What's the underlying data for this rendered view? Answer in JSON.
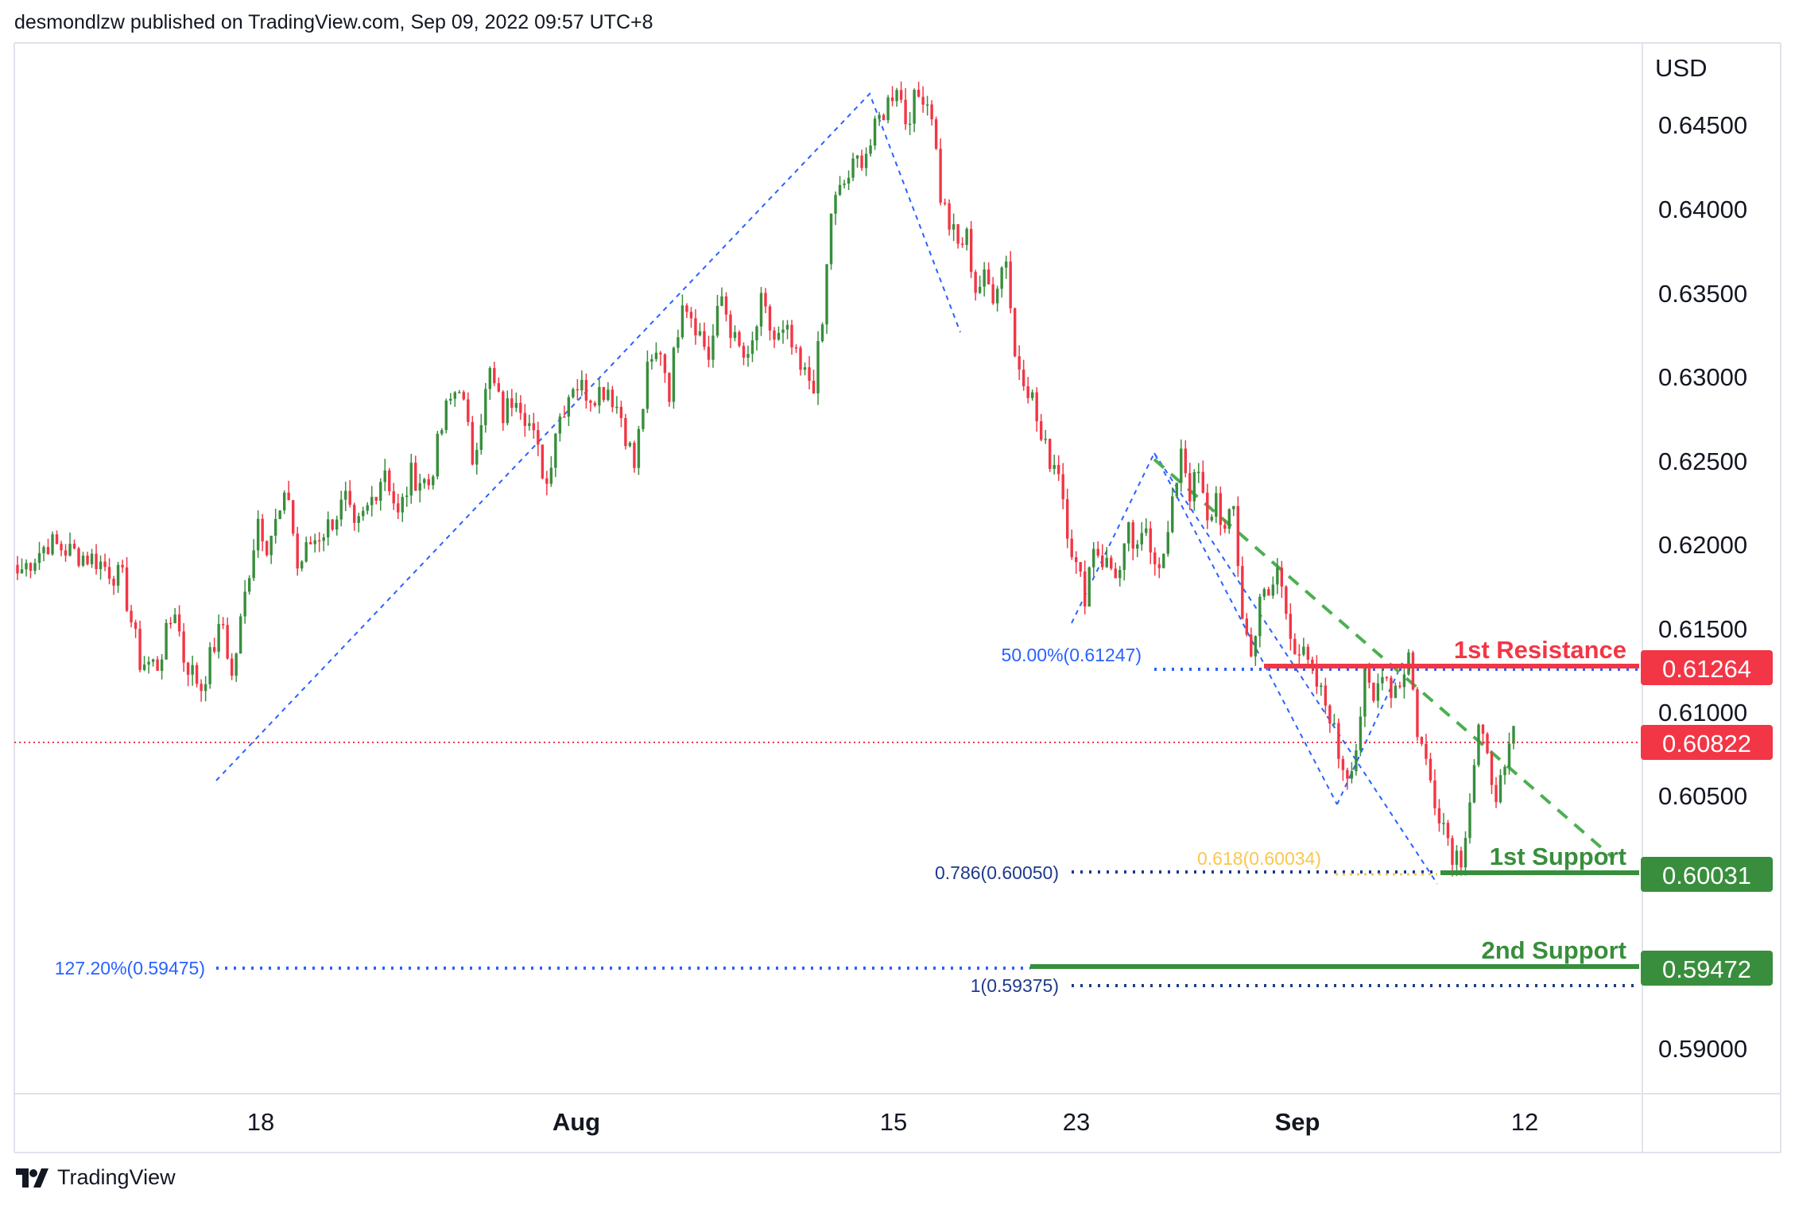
{
  "header": {
    "published_text": "desmondlzw published on TradingView.com, Sep 09, 2022 09:57 UTC+8"
  },
  "footer": {
    "brand": "TradingView"
  },
  "chart_data": {
    "type": "candlestick",
    "currency_label": "USD",
    "price_axis_ticks": [
      "0.64500",
      "0.64000",
      "0.63500",
      "0.63000",
      "0.62500",
      "0.62000",
      "0.61500",
      "0.61000",
      "0.60500",
      "0.59000"
    ],
    "ylim": [
      0.5865,
      0.6485
    ],
    "date_axis_labels": [
      {
        "label": "18",
        "bold": false
      },
      {
        "label": "Aug",
        "bold": true
      },
      {
        "label": "15",
        "bold": false
      },
      {
        "label": "23",
        "bold": false
      },
      {
        "label": "Sep",
        "bold": true
      },
      {
        "label": "12",
        "bold": false
      }
    ],
    "current_price": "0.60822",
    "levels": [
      {
        "name": "1st Resistance",
        "value": "0.61264",
        "color": "#f23645"
      },
      {
        "name": "1st Support",
        "value": "0.60031",
        "color": "#388e3c"
      },
      {
        "name": "2nd Support",
        "value": "0.59472",
        "color": "#388e3c"
      }
    ],
    "fib_labels": [
      {
        "text": "50.00%(0.61247)",
        "color": "#2962ff"
      },
      {
        "text": "0.786(0.60050)",
        "color": "#1e3a8a"
      },
      {
        "text": "0.618(0.60034)",
        "color": "#f9c74f"
      },
      {
        "text": "127.20%(0.59475)",
        "color": "#2962ff"
      },
      {
        "text": "1(0.59375)",
        "color": "#1e3a8a"
      }
    ],
    "colors": {
      "up": "#388e3c",
      "down": "#f23645",
      "fib_blue": "#2962ff",
      "fib_navy": "#1e3a8a",
      "fib_gold": "#f9c74f",
      "trend_green": "#4caf50"
    },
    "waypoints": [
      [
        0,
        0.6172
      ],
      [
        7,
        0.619
      ],
      [
        12,
        0.6185
      ],
      [
        18,
        0.618
      ],
      [
        24,
        0.6168
      ],
      [
        28,
        0.612
      ],
      [
        32,
        0.6118
      ],
      [
        36,
        0.6152
      ],
      [
        38,
        0.6122
      ],
      [
        42,
        0.6105
      ],
      [
        45,
        0.613
      ],
      [
        47,
        0.6142
      ],
      [
        49,
        0.611
      ],
      [
        53,
        0.6175
      ],
      [
        55,
        0.6205
      ],
      [
        57,
        0.619
      ],
      [
        62,
        0.6218
      ],
      [
        64,
        0.6175
      ],
      [
        67,
        0.619
      ],
      [
        71,
        0.62
      ],
      [
        75,
        0.6215
      ],
      [
        77,
        0.6195
      ],
      [
        80,
        0.621
      ],
      [
        84,
        0.6235
      ],
      [
        87,
        0.6205
      ],
      [
        90,
        0.623
      ],
      [
        94,
        0.6225
      ],
      [
        98,
        0.6268
      ],
      [
        101,
        0.6285
      ],
      [
        104,
        0.624
      ],
      [
        108,
        0.629
      ],
      [
        111,
        0.6265
      ],
      [
        114,
        0.628
      ],
      [
        117,
        0.626
      ],
      [
        121,
        0.6225
      ],
      [
        123,
        0.6258
      ],
      [
        127,
        0.6285
      ],
      [
        131,
        0.6278
      ],
      [
        135,
        0.6282
      ],
      [
        138,
        0.6265
      ],
      [
        141,
        0.6235
      ],
      [
        144,
        0.629
      ],
      [
        147,
        0.6305
      ],
      [
        149,
        0.628
      ],
      [
        152,
        0.6337
      ],
      [
        155,
        0.632
      ],
      [
        158,
        0.63
      ],
      [
        161,
        0.6335
      ],
      [
        164,
        0.6308
      ],
      [
        167,
        0.6295
      ],
      [
        170,
        0.633
      ],
      [
        173,
        0.631
      ],
      [
        176,
        0.6312
      ],
      [
        179,
        0.629
      ],
      [
        182,
        0.6285
      ],
      [
        184,
        0.6318
      ],
      [
        186,
        0.6386
      ],
      [
        189,
        0.6402
      ],
      [
        192,
        0.6415
      ],
      [
        195,
        0.6425
      ],
      [
        197,
        0.644
      ],
      [
        199,
        0.645
      ],
      [
        201,
        0.6462
      ],
      [
        203,
        0.644
      ],
      [
        205,
        0.645
      ],
      [
        207,
        0.6456
      ],
      [
        209,
        0.6445
      ],
      [
        211,
        0.6395
      ],
      [
        213,
        0.6378
      ],
      [
        215,
        0.6365
      ],
      [
        217,
        0.637
      ],
      [
        219,
        0.634
      ],
      [
        221,
        0.6345
      ],
      [
        223,
        0.6338
      ],
      [
        226,
        0.636
      ],
      [
        228,
        0.63
      ],
      [
        230,
        0.629
      ],
      [
        232,
        0.6275
      ],
      [
        234,
        0.625
      ],
      [
        236,
        0.624
      ],
      [
        238,
        0.6235
      ],
      [
        240,
        0.62
      ],
      [
        242,
        0.6175
      ],
      [
        244,
        0.616
      ],
      [
        246,
        0.619
      ],
      [
        248,
        0.618
      ],
      [
        250,
        0.6175
      ],
      [
        252,
        0.6172
      ],
      [
        254,
        0.6195
      ],
      [
        256,
        0.6182
      ],
      [
        258,
        0.62
      ],
      [
        260,
        0.6182
      ],
      [
        262,
        0.618
      ],
      [
        264,
        0.621
      ],
      [
        266,
        0.6248
      ],
      [
        268,
        0.622
      ],
      [
        270,
        0.623
      ],
      [
        272,
        0.62
      ],
      [
        274,
        0.6218
      ],
      [
        276,
        0.6195
      ],
      [
        278,
        0.621
      ],
      [
        280,
        0.6148
      ],
      [
        282,
        0.6122
      ],
      [
        284,
        0.616
      ],
      [
        286,
        0.6155
      ],
      [
        288,
        0.6175
      ],
      [
        290,
        0.615
      ],
      [
        292,
        0.613
      ],
      [
        294,
        0.6122
      ],
      [
        296,
        0.6112
      ],
      [
        298,
        0.61
      ],
      [
        300,
        0.609
      ],
      [
        302,
        0.6065
      ],
      [
        304,
        0.6055
      ],
      [
        306,
        0.607
      ],
      [
        308,
        0.611
      ],
      [
        310,
        0.6095
      ],
      [
        312,
        0.6118
      ],
      [
        314,
        0.6104
      ],
      [
        316,
        0.6108
      ],
      [
        318,
        0.6125
      ],
      [
        320,
        0.608
      ],
      [
        322,
        0.606
      ],
      [
        324,
        0.604
      ],
      [
        326,
        0.6025
      ],
      [
        328,
        0.6008
      ],
      [
        330,
        0.6005
      ],
      [
        332,
        0.604
      ],
      [
        334,
        0.608
      ],
      [
        336,
        0.606
      ],
      [
        338,
        0.6045
      ],
      [
        340,
        0.605
      ],
      [
        342,
        0.6082
      ]
    ]
  }
}
